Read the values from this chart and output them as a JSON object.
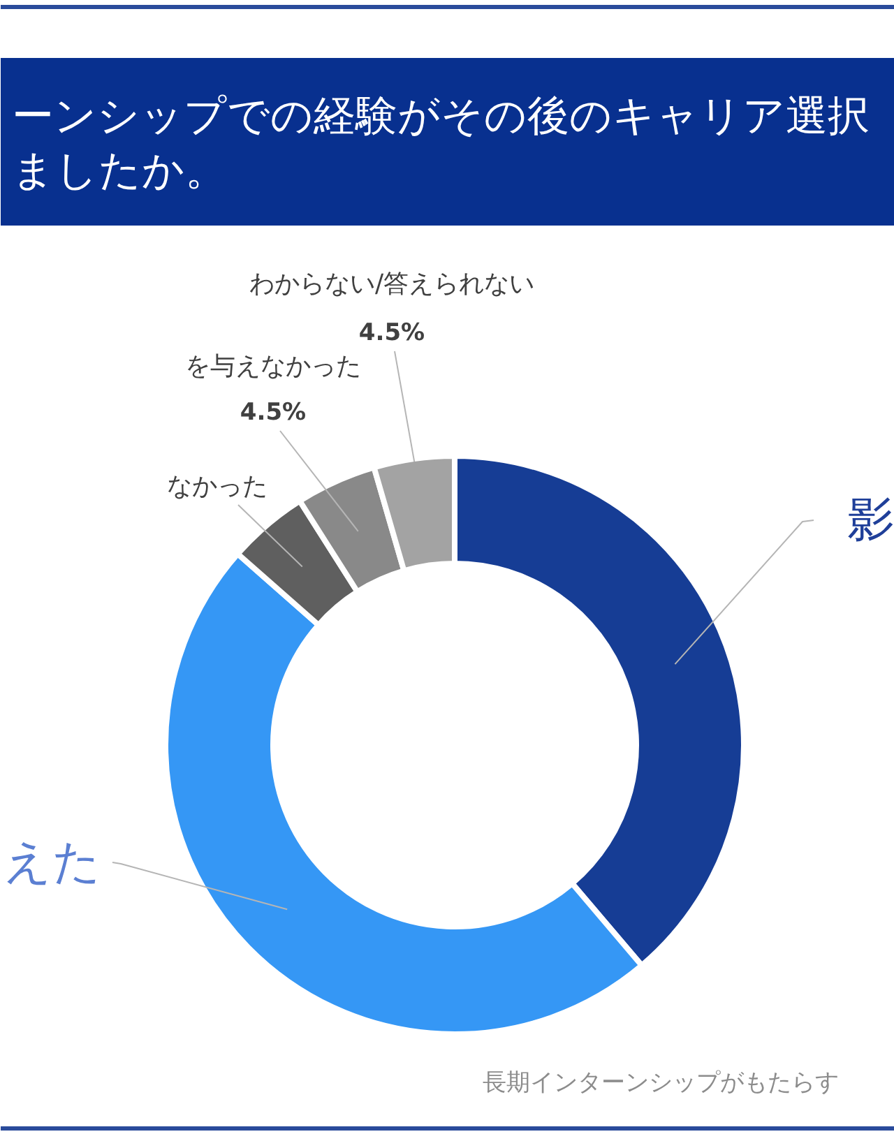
{
  "chart_data": {
    "type": "donut",
    "title": "ーンシップでの経験がその後のキャリア選択ましたか。",
    "categories": [
      "影",
      "えた",
      "なかった",
      "を与えなかった",
      "わからない/答えられない"
    ],
    "values": [
      38.8,
      47.7,
      4.5,
      4.5,
      4.5
    ],
    "colors": [
      "#163d95",
      "#3597f5",
      "#5f5f5f",
      "#898989",
      "#a3a3a3"
    ],
    "value_labels": [
      null,
      null,
      null,
      "4.5%",
      "4.5%"
    ],
    "annotations": [
      "長期インターンシップがもたらす"
    ]
  }
}
